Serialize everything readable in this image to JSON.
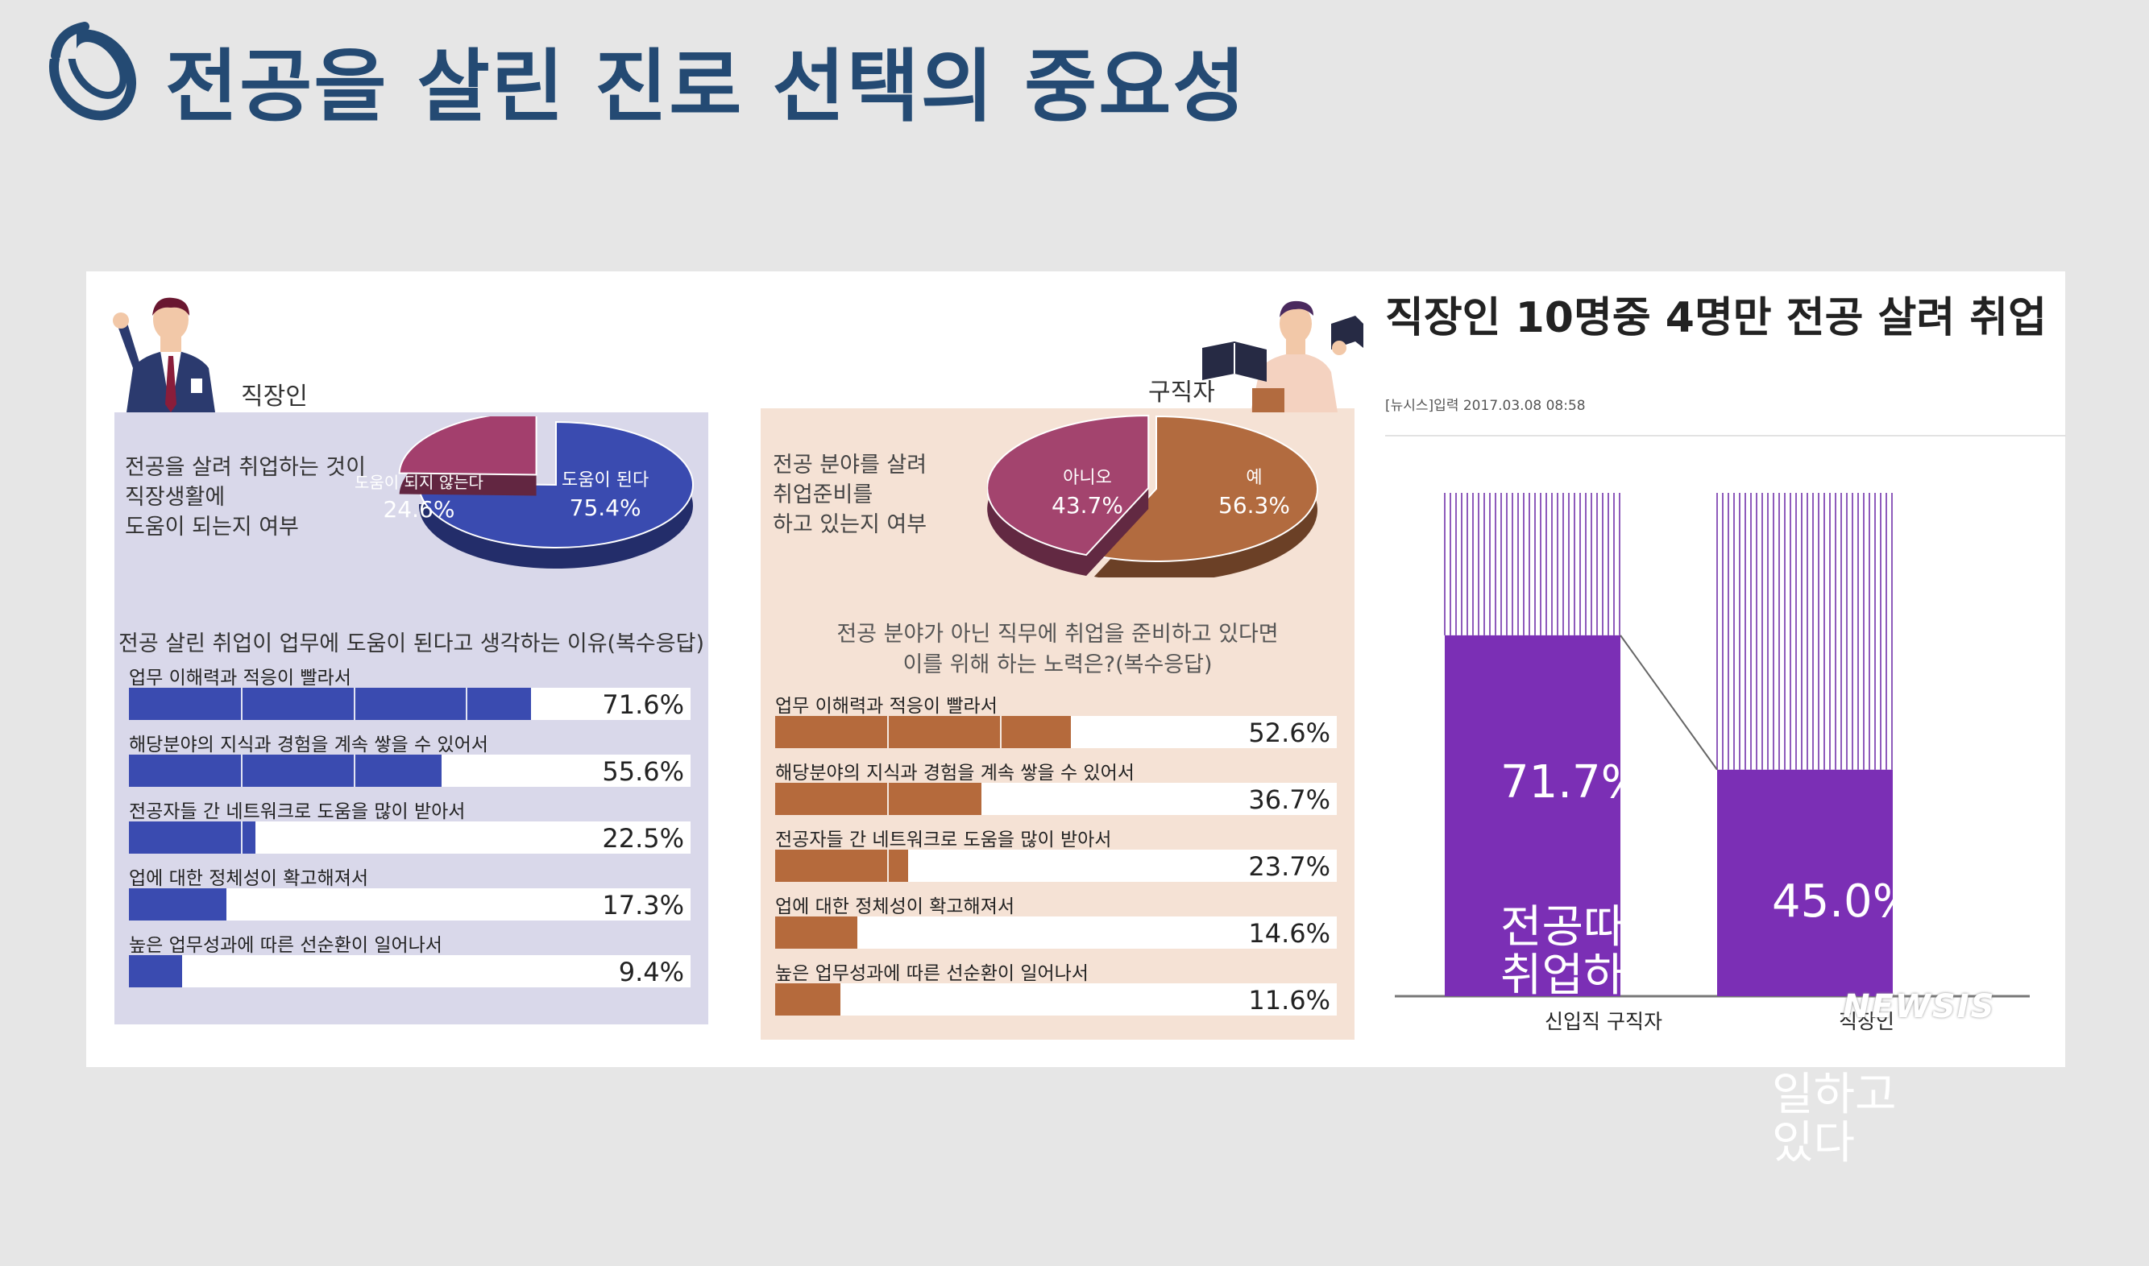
{
  "page": {
    "title": "전공을 살린 진로 선택의 중요성"
  },
  "left_panel": {
    "person_label": "직장인",
    "question": [
      "전공을 살려 취업하는 것이",
      "직장생활에",
      "도움이 되는지 여부"
    ],
    "pie": [
      {
        "label": "도움이 된다",
        "value_text": "75.4%",
        "value": 75.4,
        "color": "#3a4bb0"
      },
      {
        "label": "도움이 되지 않는다",
        "value_text": "24.6%",
        "value": 24.6,
        "color": "#a33f6d"
      }
    ],
    "survey_title": "전공 살린 취업이 업무에 도움이 된다고 생각하는 이유(복수응답)",
    "bar_color": "#3a4bb0"
  },
  "middle_panel": {
    "person_label": "구직자",
    "question": [
      "전공 분야를 살려",
      "취업준비를",
      "하고 있는지 여부"
    ],
    "pie": [
      {
        "label": "예",
        "value_text": "56.3%",
        "value": 56.3,
        "color": "#b26b3f"
      },
      {
        "label": "아니오",
        "value_text": "43.7%",
        "value": 43.7,
        "color": "#a3446e"
      }
    ],
    "survey_title": [
      "전공 분야가 아닌 직무에 취업을 준비하고 있다면",
      "이를 위해 하는 노력은?(복수응답)"
    ],
    "bar_color": "#b56a3c"
  },
  "news": {
    "headline": "직장인 10명중 4명만 전공 살려 취업",
    "meta": "[뉴시스]입력 2017.03.08 08:58",
    "watermark": "NEWSIS",
    "bar_color": "#7b2fb5"
  },
  "chart_data": [
    {
      "type": "pie",
      "title": "전공을 살려 취업하는 것이 직장생활에 도움이 되는지 여부",
      "categories": [
        "도움이 된다",
        "도움이 되지 않는다"
      ],
      "values": [
        75.4,
        24.6
      ]
    },
    {
      "type": "bar",
      "title": "전공 살린 취업이 업무에 도움이 된다고 생각하는 이유(복수응답)",
      "categories": [
        "업무 이해력과 적응이 빨라서",
        "해당분야의 지식과 경험을 계속 쌓을 수 있어서",
        "전공자들 간 네트워크로 도움을 많이 받아서",
        "업에 대한 정체성이 확고해져서",
        "높은 업무성과에 따른 선순환이 일어나서"
      ],
      "values": [
        71.6,
        55.6,
        22.5,
        17.3,
        9.4
      ],
      "value_labels": [
        "71.6%",
        "55.6%",
        "22.5%",
        "17.3%",
        "9.4%"
      ]
    },
    {
      "type": "pie",
      "title": "전공 분야를 살려 취업준비를 하고 있는지 여부",
      "categories": [
        "예",
        "아니오"
      ],
      "values": [
        56.3,
        43.7
      ]
    },
    {
      "type": "bar",
      "title": "전공 분야가 아닌 직무에 취업을 준비하고 있다면 이를 위해 하는 노력은?(복수응답)",
      "categories": [
        "업무 이해력과 적응이 빨라서",
        "해당분야의 지식과 경험을 계속 쌓을 수 있어서",
        "전공자들 간 네트워크로 도움을 많이 받아서",
        "업에 대한 정체성이 확고해져서",
        "높은 업무성과에 따른 선순환이 일어나서"
      ],
      "values": [
        52.6,
        36.7,
        23.7,
        14.6,
        11.6
      ],
      "value_labels": [
        "52.6%",
        "36.7%",
        "23.7%",
        "14.6%",
        "11.6%"
      ]
    },
    {
      "type": "bar",
      "title": "직장인 10명중 4명만 전공 살려 취업",
      "categories": [
        "신입직 구직자",
        "직장인"
      ],
      "values": [
        71.7,
        45.0
      ],
      "value_labels": [
        "71.7%",
        "45.0%"
      ],
      "captions": [
        "전공따라\n취업하고\n싶다",
        "전공살려\n일하고\n있다"
      ],
      "ylim": [
        0,
        100
      ]
    }
  ]
}
